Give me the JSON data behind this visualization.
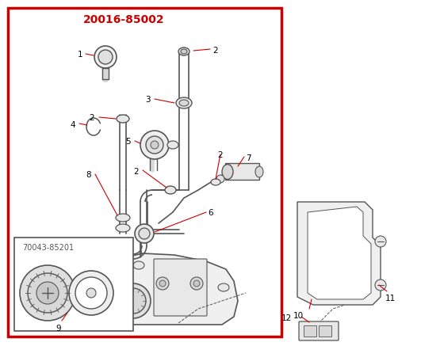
{
  "title": "20016-85002",
  "title_color": "#cc0000",
  "bg_color": "#ffffff",
  "border_color": "#cc0000",
  "border_lw": 2.5,
  "sub_label": "70043-85201",
  "line_color": "#555555",
  "red_line_color": "#cc0000",
  "part_num_color": "#000000",
  "part_num_fontsize": 7.5
}
